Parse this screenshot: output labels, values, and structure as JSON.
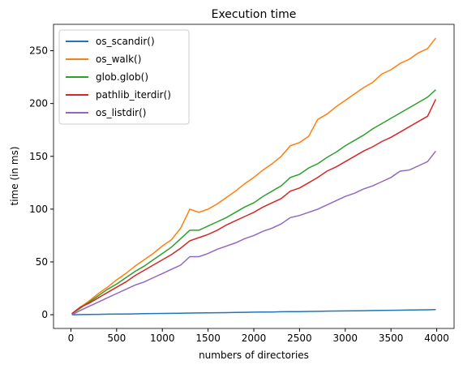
{
  "chart_data": {
    "type": "line",
    "title": "Execution time",
    "xlabel": "numbers of directories",
    "ylabel": "time (in ms)",
    "x": [
      10,
      100,
      200,
      300,
      400,
      500,
      600,
      700,
      800,
      900,
      1000,
      1100,
      1200,
      1300,
      1400,
      1500,
      1600,
      1700,
      1800,
      1900,
      2000,
      2100,
      2200,
      2300,
      2400,
      2500,
      2600,
      2700,
      2800,
      2900,
      3000,
      3100,
      3200,
      3300,
      3400,
      3500,
      3600,
      3700,
      3800,
      3900,
      3990
    ],
    "series": [
      {
        "name": "os_scandir()",
        "color": "#1f77b4",
        "values": [
          0,
          0.1,
          0.2,
          0.4,
          0.5,
          0.6,
          0.7,
          0.8,
          1,
          1.1,
          1.2,
          1.3,
          1.4,
          1.6,
          1.7,
          1.8,
          1.9,
          2,
          2.2,
          2.3,
          2.4,
          2.5,
          2.6,
          2.8,
          2.9,
          3,
          3.1,
          3.2,
          3.4,
          3.5,
          3.6,
          3.7,
          3.8,
          4,
          4.1,
          4.2,
          4.3,
          4.4,
          4.6,
          4.7,
          4.8
        ]
      },
      {
        "name": "os_walk()",
        "color": "#ff7f0e",
        "values": [
          1,
          7,
          13,
          20,
          26,
          33,
          39,
          46,
          52,
          58,
          65,
          71,
          82,
          100,
          97,
          100,
          105,
          111,
          117,
          124,
          130,
          137,
          143,
          150,
          160,
          163,
          169,
          185,
          190,
          197,
          203,
          209,
          215,
          220,
          228,
          232,
          238,
          242,
          248,
          252,
          262
        ]
      },
      {
        "name": "glob.glob()",
        "color": "#2ca02c",
        "values": [
          1,
          6,
          12,
          18,
          24,
          29,
          35,
          41,
          46,
          52,
          58,
          64,
          72,
          80,
          80,
          84,
          88,
          92,
          97,
          102,
          106,
          112,
          117,
          122,
          130,
          133,
          139,
          143,
          149,
          154,
          160,
          165,
          170,
          176,
          181,
          186,
          191,
          196,
          201,
          206,
          213
        ]
      },
      {
        "name": "pathlib_iterdir()",
        "color": "#d62728",
        "values": [
          1,
          7,
          11,
          16,
          21,
          26,
          31,
          37,
          42,
          47,
          52,
          57,
          63,
          70,
          73,
          76,
          80,
          85,
          89,
          93,
          97,
          102,
          106,
          110,
          117,
          120,
          125,
          130,
          136,
          140,
          145,
          150,
          155,
          159,
          164,
          168,
          173,
          178,
          183,
          188,
          204
        ]
      },
      {
        "name": "os_listdir()",
        "color": "#9467bd",
        "values": [
          0,
          4,
          8,
          12,
          16,
          20,
          24,
          28,
          31,
          35,
          39,
          43,
          47,
          55,
          55,
          58,
          62,
          65,
          68,
          72,
          75,
          79,
          82,
          86,
          92,
          94,
          97,
          100,
          104,
          108,
          112,
          115,
          119,
          122,
          126,
          130,
          136,
          137,
          141,
          145,
          155
        ]
      }
    ],
    "xlim": [
      -190,
      4190
    ],
    "ylim": [
      -13,
      275
    ],
    "xticks": [
      0,
      500,
      1000,
      1500,
      2000,
      2500,
      3000,
      3500,
      4000
    ],
    "yticks": [
      0,
      50,
      100,
      150,
      200,
      250
    ],
    "legend": "upper left"
  }
}
